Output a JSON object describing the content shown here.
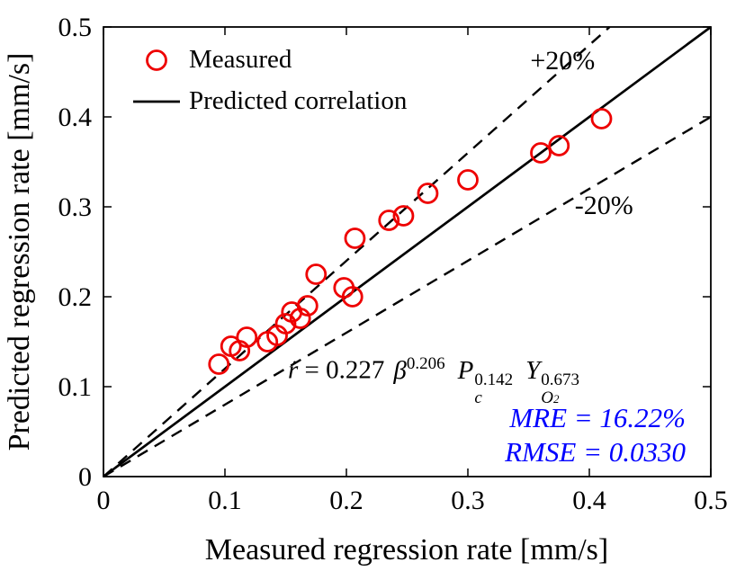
{
  "chart_data": {
    "type": "scatter",
    "title": "",
    "xlabel": "Measured regression rate [mm/s]",
    "ylabel": "Predicted regression rate [mm/s]",
    "xlim": [
      0,
      0.5
    ],
    "ylim": [
      0,
      0.5
    ],
    "xticks": [
      "0",
      "0.1",
      "0.2",
      "0.3",
      "0.4",
      "0.5"
    ],
    "yticks": [
      "0",
      "0.1",
      "0.2",
      "0.3",
      "0.4",
      "0.5"
    ],
    "grid": false,
    "legend_position": "top-left",
    "series": [
      {
        "name": "Measured",
        "type": "scatter",
        "marker": "open-circle",
        "color": "#ee0000",
        "points": [
          [
            0.095,
            0.125
          ],
          [
            0.105,
            0.145
          ],
          [
            0.112,
            0.14
          ],
          [
            0.118,
            0.155
          ],
          [
            0.135,
            0.15
          ],
          [
            0.143,
            0.157
          ],
          [
            0.15,
            0.17
          ],
          [
            0.155,
            0.183
          ],
          [
            0.162,
            0.176
          ],
          [
            0.168,
            0.19
          ],
          [
            0.175,
            0.225
          ],
          [
            0.198,
            0.21
          ],
          [
            0.205,
            0.2
          ],
          [
            0.207,
            0.265
          ],
          [
            0.235,
            0.285
          ],
          [
            0.247,
            0.29
          ],
          [
            0.267,
            0.315
          ],
          [
            0.3,
            0.33
          ],
          [
            0.36,
            0.36
          ],
          [
            0.375,
            0.368
          ],
          [
            0.41,
            0.398
          ]
        ]
      },
      {
        "name": "Predicted correlation",
        "type": "line",
        "style": "solid",
        "color": "#000000",
        "points": [
          [
            0,
            0
          ],
          [
            0.5,
            0.5
          ]
        ]
      },
      {
        "name": "+20% bound",
        "type": "line",
        "style": "dashed",
        "color": "#000000",
        "points": [
          [
            0,
            0
          ],
          [
            0.4167,
            0.5
          ]
        ]
      },
      {
        "name": "-20% bound",
        "type": "line",
        "style": "dashed",
        "color": "#000000",
        "points": [
          [
            0,
            0
          ],
          [
            0.5,
            0.4
          ]
        ]
      }
    ],
    "annotations": [
      {
        "text": "+20%",
        "x": 0.378,
        "y": 0.453
      },
      {
        "text": "-20%",
        "x": 0.412,
        "y": 0.292
      }
    ],
    "equation": {
      "lhs": "ṙ",
      "rel": " = ",
      "coefficient": "0.227",
      "var1": "β",
      "var1_exp": "0.206",
      "var2": "P",
      "var2_sub": "c",
      "var2_exp": "0.142",
      "var3": "Y",
      "var3_sub": "O",
      "var3_subsub": "2",
      "var3_exp": "0.673"
    },
    "stats": {
      "color": "#0000ff",
      "mre": "MRE = 16.22%",
      "rmse": "RMSE = 0.0330"
    }
  }
}
